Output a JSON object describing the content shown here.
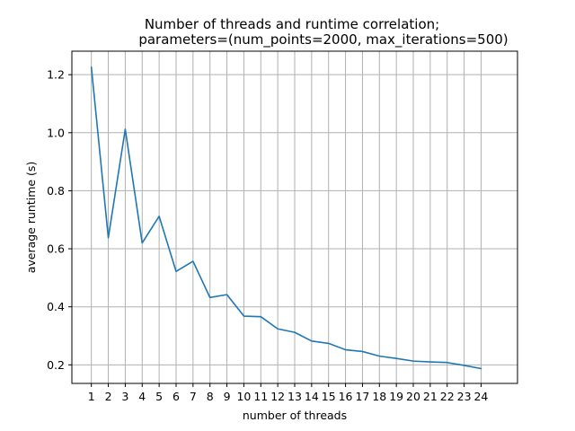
{
  "chart_data": {
    "type": "line",
    "title_lines": [
      "Number of threads and runtime correlation;",
      "parameters=(num_points=2000, max_iterations=500)"
    ],
    "xlabel": "number of threads",
    "ylabel": "average runtime (s)",
    "x": [
      1,
      2,
      3,
      4,
      5,
      6,
      7,
      8,
      9,
      10,
      11,
      12,
      13,
      14,
      15,
      16,
      17,
      18,
      19,
      20,
      21,
      22,
      23,
      24
    ],
    "xticks": [
      1,
      2,
      3,
      4,
      5,
      6,
      7,
      8,
      9,
      10,
      11,
      12,
      13,
      14,
      15,
      16,
      17,
      18,
      19,
      20,
      21,
      22,
      23,
      24
    ],
    "yticks": [
      0.2,
      0.4,
      0.6,
      0.8,
      1.0,
      1.2
    ],
    "ytick_labels": [
      "0.2",
      "0.4",
      "0.6",
      "0.8",
      "1.0",
      "1.2"
    ],
    "xlim": [
      -0.15,
      26.15
    ],
    "ylim": [
      0.136,
      1.281
    ],
    "grid": true,
    "series": [
      {
        "color": "#1f77b4",
        "values": [
          1.226,
          0.638,
          1.012,
          0.62,
          0.712,
          0.522,
          0.557,
          0.432,
          0.442,
          0.368,
          0.366,
          0.324,
          0.312,
          0.282,
          0.274,
          0.252,
          0.246,
          0.23,
          0.222,
          0.213,
          0.21,
          0.208,
          0.198,
          0.187
        ]
      }
    ]
  }
}
